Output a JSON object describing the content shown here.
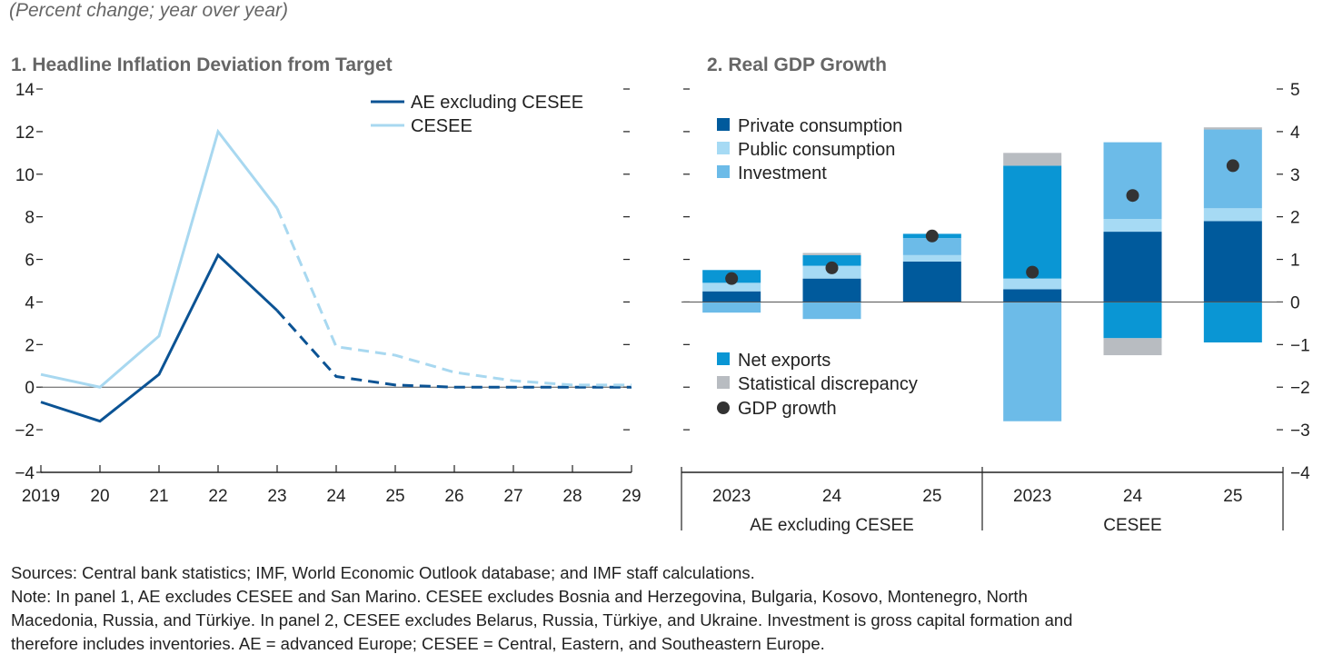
{
  "subtitle": "(Percent change; year over year)",
  "chart_data": [
    {
      "type": "line",
      "title": "1. Headline Inflation Deviation from Target",
      "x": [
        "2019",
        "20",
        "21",
        "22",
        "23",
        "24",
        "25",
        "26",
        "27",
        "28",
        "29"
      ],
      "ylim": [
        -4,
        14
      ],
      "yticks": [
        "14",
        "12",
        "10",
        "8",
        "6",
        "4",
        "2",
        "0",
        "−2",
        "−4"
      ],
      "ytick_values": [
        14,
        12,
        10,
        8,
        6,
        4,
        2,
        0,
        -2,
        -4
      ],
      "projection_starts_after": "23",
      "legend_position": "top-right",
      "series": [
        {
          "name": "AE excluding CESEE",
          "color": "#0b5394",
          "values": [
            -0.7,
            -1.6,
            0.6,
            6.2,
            3.6,
            0.5,
            0.1,
            0.0,
            0.0,
            0.0,
            0.0
          ]
        },
        {
          "name": "CESEE",
          "color": "#a8d8f0",
          "values": [
            0.6,
            0.0,
            2.4,
            12.0,
            8.4,
            1.9,
            1.5,
            0.7,
            0.3,
            0.1,
            0.1
          ]
        }
      ]
    },
    {
      "type": "bar",
      "stacked": true,
      "title": "2. Real GDP Growth",
      "categories": [
        "2023",
        "24",
        "25",
        "2023",
        "24",
        "25"
      ],
      "groups": [
        {
          "label": "AE excluding CESEE",
          "span": 3
        },
        {
          "label": "CESEE",
          "span": 3
        }
      ],
      "ylim": [
        -4,
        5
      ],
      "yticks": [
        "5",
        "4",
        "3",
        "2",
        "1",
        "0",
        "−1",
        "−2",
        "−3",
        "−4"
      ],
      "ytick_values": [
        5,
        4,
        3,
        2,
        1,
        0,
        -1,
        -2,
        -3,
        -4
      ],
      "legend_position": "left",
      "series": [
        {
          "name": "Private consumption",
          "color": "#005a9c",
          "values": [
            0.25,
            0.55,
            0.95,
            0.3,
            1.65,
            1.9
          ]
        },
        {
          "name": "Public consumption",
          "color": "#a6daf4",
          "values": [
            0.2,
            0.3,
            0.15,
            0.25,
            0.3,
            0.3
          ]
        },
        {
          "name": "Investment",
          "color": "#6cbbe8",
          "values": [
            -0.25,
            -0.4,
            0.4,
            -2.8,
            1.8,
            1.85
          ]
        },
        {
          "name": "Net exports",
          "color": "#0a96d4",
          "values": [
            0.3,
            0.25,
            0.1,
            2.65,
            -0.85,
            -0.95
          ]
        },
        {
          "name": "Statistical discrepancy",
          "color": "#b8bcc1",
          "values": [
            0,
            0.05,
            0,
            0.3,
            -0.4,
            0.05
          ]
        }
      ],
      "gdp_growth": {
        "name": "GDP growth",
        "color": "#333333",
        "values": [
          0.55,
          0.8,
          1.55,
          0.7,
          2.5,
          3.2
        ]
      }
    }
  ],
  "notes": [
    "Sources: Central bank statistics; IMF, World Economic Outlook database; and IMF staff calculations.",
    "Note: In panel 1, AE excludes CESEE and San Marino. CESEE excludes Bosnia and Herzegovina, Bulgaria, Kosovo, Montenegro, North",
    "Macedonia, Russia, and Türkiye. In panel 2, CESEE excludes Belarus, Russia, Türkiye, and Ukraine. Investment is gross capital formation and",
    "therefore includes inventories. AE = advanced Europe; CESEE = Central, Eastern, and Southeastern Europe."
  ]
}
